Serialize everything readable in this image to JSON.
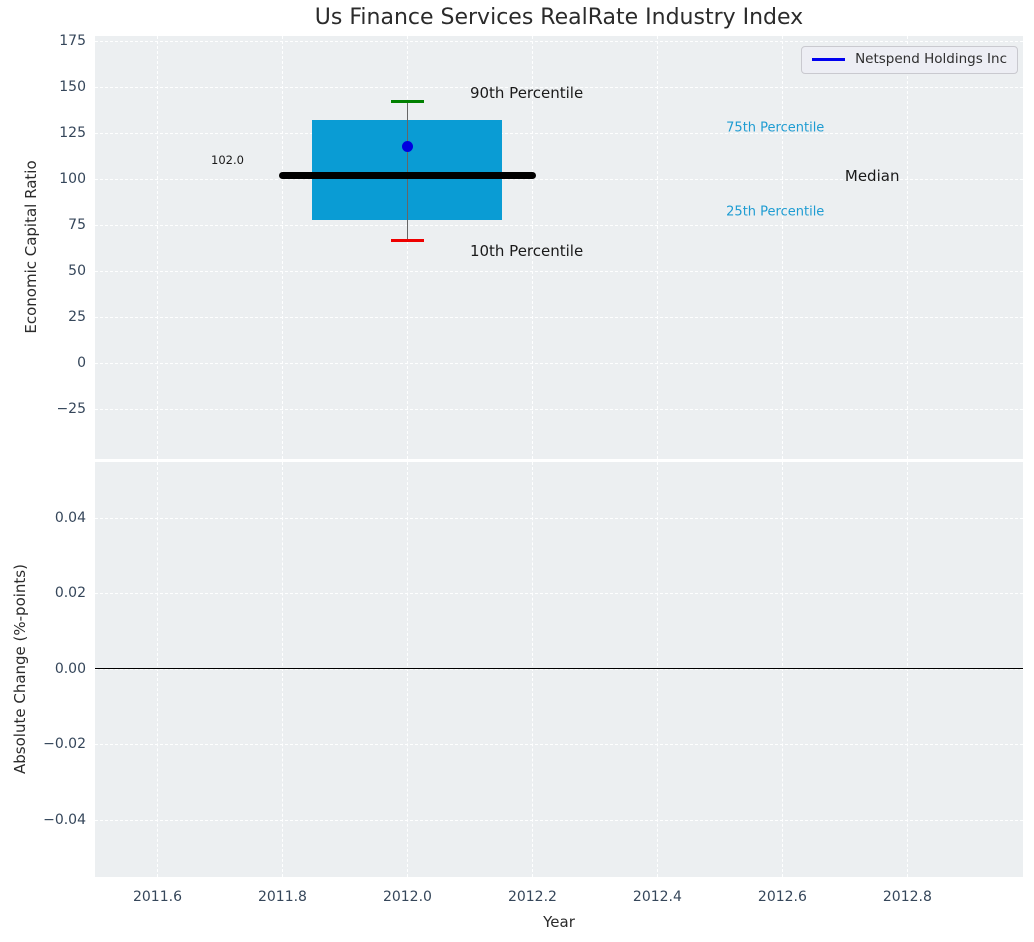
{
  "colors": {
    "plot_background": "#ECEFF1",
    "grid": "#FFFFFF",
    "box_fill": "#0A9CD4",
    "p90_cap": "#008000",
    "p10_cap": "#EE0000",
    "median_line": "#000000",
    "whisker": "#666666",
    "company_dot": "#0000E0",
    "legend_line": "#0000F0",
    "tick_label": "#35465A",
    "annotation_blue": "#1E9CD2",
    "zero_line": "#000000"
  },
  "chart_data": [
    {
      "type": "box",
      "subplot": "top",
      "title": "Us Finance Services RealRate Industry Index",
      "ylabel": "Economic Capital Ratio",
      "xlim": [
        2011.5,
        2012.985
      ],
      "ylim": [
        -52,
        177.8
      ],
      "ytick_values": [
        175,
        150,
        125,
        100,
        75,
        50,
        25,
        0,
        -25
      ],
      "ytick_labels": [
        "175",
        "150",
        "125",
        "100",
        "75",
        "50",
        "25",
        "0",
        "−25"
      ],
      "grid": true,
      "legend": {
        "label": "Netspend Holdings Inc",
        "position": "upper right"
      },
      "box": {
        "x_center": 2012.0,
        "box_half_width": 0.152,
        "median_line_half_width": 0.205,
        "cap_half_width": 0.026,
        "p10": 66.5,
        "p25": 78,
        "median": 102,
        "p75": 132,
        "p90": 142,
        "median_label": "102.0"
      },
      "company_point": {
        "name": "Netspend Holdings Inc",
        "x": 2012.0,
        "y": 117.5
      },
      "annotations": [
        {
          "text": "90th Percentile",
          "x": 2012.1,
          "y": 147,
          "style": "large-black",
          "anchor": "left"
        },
        {
          "text": "10th Percentile",
          "x": 2012.1,
          "y": 61,
          "style": "large-black",
          "anchor": "left"
        },
        {
          "text": "75th Percentile",
          "x": 2012.51,
          "y": 128,
          "style": "small-blue",
          "anchor": "left"
        },
        {
          "text": "25th Percentile",
          "x": 2012.51,
          "y": 82,
          "style": "small-blue",
          "anchor": "left"
        },
        {
          "text": "Median",
          "x": 2012.7,
          "y": 102,
          "style": "large-black",
          "anchor": "left"
        },
        {
          "text": "102.0",
          "x": 2011.712,
          "y": 110.7,
          "style": "xsmall-black",
          "anchor": "center"
        }
      ]
    },
    {
      "type": "line",
      "subplot": "bottom",
      "ylabel": "Absolute Change (%-points)",
      "xlabel": "Year",
      "xlim": [
        2011.5,
        2012.985
      ],
      "ylim": [
        -0.0552,
        0.0548
      ],
      "xtick_values": [
        2011.6,
        2011.8,
        2012.0,
        2012.2,
        2012.4,
        2012.6,
        2012.8
      ],
      "xtick_labels": [
        "2011.6",
        "2011.8",
        "2012.0",
        "2012.2",
        "2012.4",
        "2012.6",
        "2012.8"
      ],
      "ytick_values": [
        0.04,
        0.02,
        0,
        -0.02,
        -0.04
      ],
      "ytick_labels": [
        "0.04",
        "0.02",
        "0.00",
        "−0.02",
        "−0.04"
      ],
      "zero_line": 0,
      "series": [],
      "grid": true
    }
  ]
}
